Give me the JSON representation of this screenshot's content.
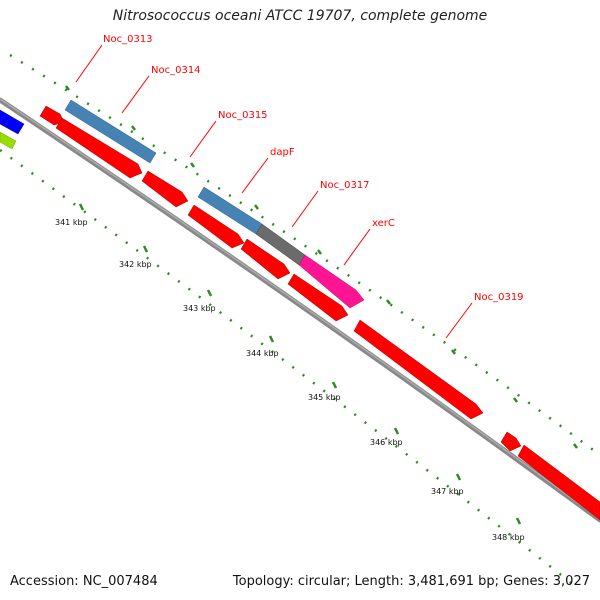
{
  "title": "Nitrosococcus oceani ATCC 19707, complete genome",
  "footer": {
    "accession": "Accession: NC_007484",
    "summary": "Topology: circular; Length: 3,481,691 bp; Genes: 3,027"
  },
  "colors": {
    "cds_forward_red": "#ff0000",
    "cds_blue": "#4682b4",
    "cds_grey": "#6b6b6b",
    "cds_magenta": "#ff1493",
    "cds_royal_blue": "#0000ff",
    "cds_lime": "#99dd00",
    "backbone": "#888888",
    "tick_green": "#2e8b22",
    "label_red": "#ff0000"
  },
  "gene_labels": [
    "Noc_0313",
    "Noc_0314",
    "Noc_0315",
    "dapF",
    "Noc_0317",
    "xerC",
    "Noc_0319"
  ],
  "kbp_labels": [
    "341 kbp",
    "342 kbp",
    "343 kbp",
    "344 kbp",
    "345 kbp",
    "346 kbp",
    "347 kbp",
    "348 kbp"
  ]
}
